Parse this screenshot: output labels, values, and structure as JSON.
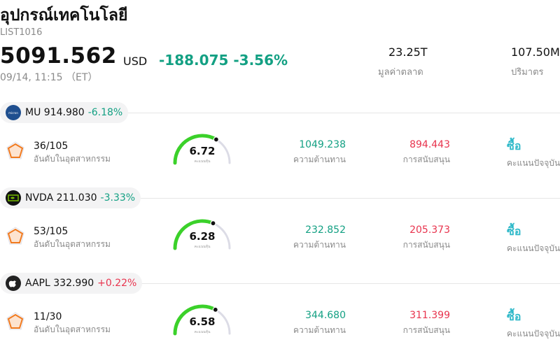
{
  "header": {
    "title": "อุปกรณ์เทคโนโลยี",
    "code": "LIST1016",
    "price": "5091.562",
    "currency": "USD",
    "change": "-188.075 -3.56%",
    "time": "09/14, 11:15 （ET）",
    "market_cap_value": "23.25T",
    "market_cap_label": "มูลค่าตลาด",
    "volume_value": "107.50M",
    "volume_label": "ปริมาตร"
  },
  "stocks": [
    {
      "symbol": "MU",
      "price": "914.980",
      "change": "-6.18%",
      "change_color": "#13a083",
      "rank": "36/105",
      "rank_label": "อันดับในอุตสาหกรรม",
      "score": "6.72",
      "score_label": "คะแนนหุ้น",
      "score_fraction": 0.67,
      "resistance": "1049.238",
      "resistance_label": "ความต้านทาน",
      "support": "894.443",
      "support_label": "การสนับสนุน",
      "action": "ซื้อ",
      "action_label": "คะแนนปัจจุบัน",
      "logo_bg": "#1f4f8f",
      "logo_icon": "micron-logo-icon"
    },
    {
      "symbol": "NVDA",
      "price": "211.030",
      "change": "-3.33%",
      "change_color": "#13a083",
      "rank": "53/105",
      "rank_label": "อันดับในอุตสาหกรรม",
      "score": "6.28",
      "score_label": "คะแนนหุ้น",
      "score_fraction": 0.63,
      "resistance": "232.852",
      "resistance_label": "ความต้านทาน",
      "support": "205.373",
      "support_label": "การสนับสนุน",
      "action": "ซื้อ",
      "action_label": "คะแนนปัจจุบัน",
      "logo_bg": "#111111",
      "logo_icon": "nvidia-logo-icon"
    },
    {
      "symbol": "AAPL",
      "price": "332.990",
      "change": "+0.22%",
      "change_color": "#e8344e",
      "rank": "11/30",
      "rank_label": "อันดับในอุตสาหกรรม",
      "score": "6.58",
      "score_label": "คะแนนหุ้น",
      "score_fraction": 0.66,
      "resistance": "344.680",
      "resistance_label": "ความต้านทาน",
      "support": "311.399",
      "support_label": "การสนับสนุน",
      "action": "ซื้อ",
      "action_label": "คะแนนปัจจุบัน",
      "logo_bg": "#222222",
      "logo_icon": "apple-logo-icon"
    }
  ],
  "colors": {
    "gauge_fill": "#3bd12a",
    "gauge_track": "#dcdce6",
    "radar_stroke": "#f07a1f",
    "radar_fill": "#fde3cf"
  }
}
